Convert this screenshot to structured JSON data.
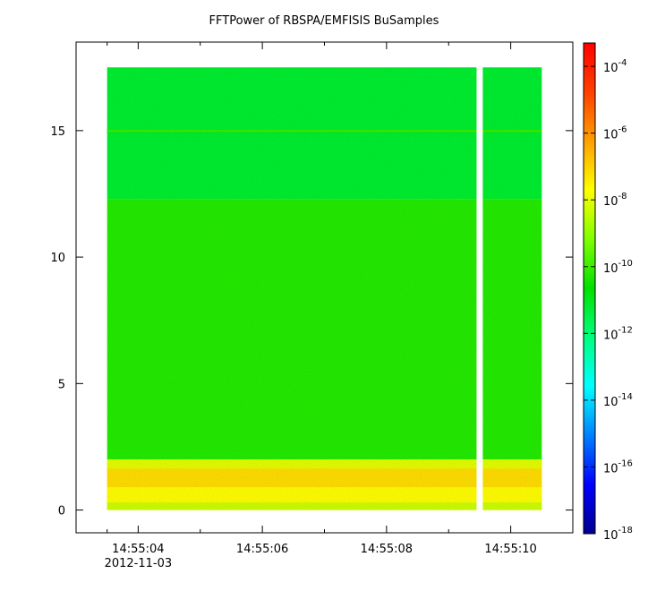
{
  "chart_data": {
    "type": "heatmap",
    "title": "FFTPower of RBSPA/EMFISIS  BuSamples",
    "xlabel": "",
    "ylabel": "",
    "x_axis": {
      "kind": "time",
      "range": [
        "14:55:03.00",
        "14:55:11.00"
      ],
      "tick_labels": [
        "14:55:04",
        "14:55:06",
        "14:55:08",
        "14:55:10"
      ],
      "tick_values": [
        "14:55:04",
        "14:55:06",
        "14:55:08",
        "14:55:10"
      ],
      "minor_tick_values": [
        "14:55:03.5",
        "14:55:05",
        "14:55:07",
        "14:55:09"
      ],
      "date_label": "2012-11-03"
    },
    "y_axis": {
      "range": [
        -0.9,
        18.5
      ],
      "tick_values": [
        0,
        5,
        10,
        15
      ],
      "tick_labels": [
        "0",
        "5",
        "10",
        "15"
      ]
    },
    "colorbar": {
      "scale": "log",
      "range_exponents": [
        -18,
        -3.3
      ],
      "tick_exponents": [
        -4,
        -6,
        -8,
        -10,
        -12,
        -14,
        -16,
        -18
      ],
      "tick_base": "10",
      "colormap": [
        "#00008f",
        "#0000ff",
        "#0080ff",
        "#00ffff",
        "#00ff80",
        "#00e000",
        "#80ff00",
        "#ffff00",
        "#ffa000",
        "#ff4000",
        "#ff0000"
      ]
    },
    "spectrogram": {
      "time_range": [
        "14:55:03.50",
        "14:55:10.50"
      ],
      "data_gap": [
        "14:55:09.45",
        "14:55:09.55"
      ],
      "freq_max": 17.5,
      "bands": [
        {
          "freq_range": [
            12.3,
            17.5
          ],
          "power_exponent": -11.2
        },
        {
          "freq_range": [
            2.0,
            12.3
          ],
          "power_exponent": -10.2
        },
        {
          "freq_range": [
            0.0,
            2.0
          ],
          "power_exponent": -7.5
        }
      ],
      "line_feature": {
        "freq": 15.0,
        "power_exponent": -10.0
      }
    }
  }
}
